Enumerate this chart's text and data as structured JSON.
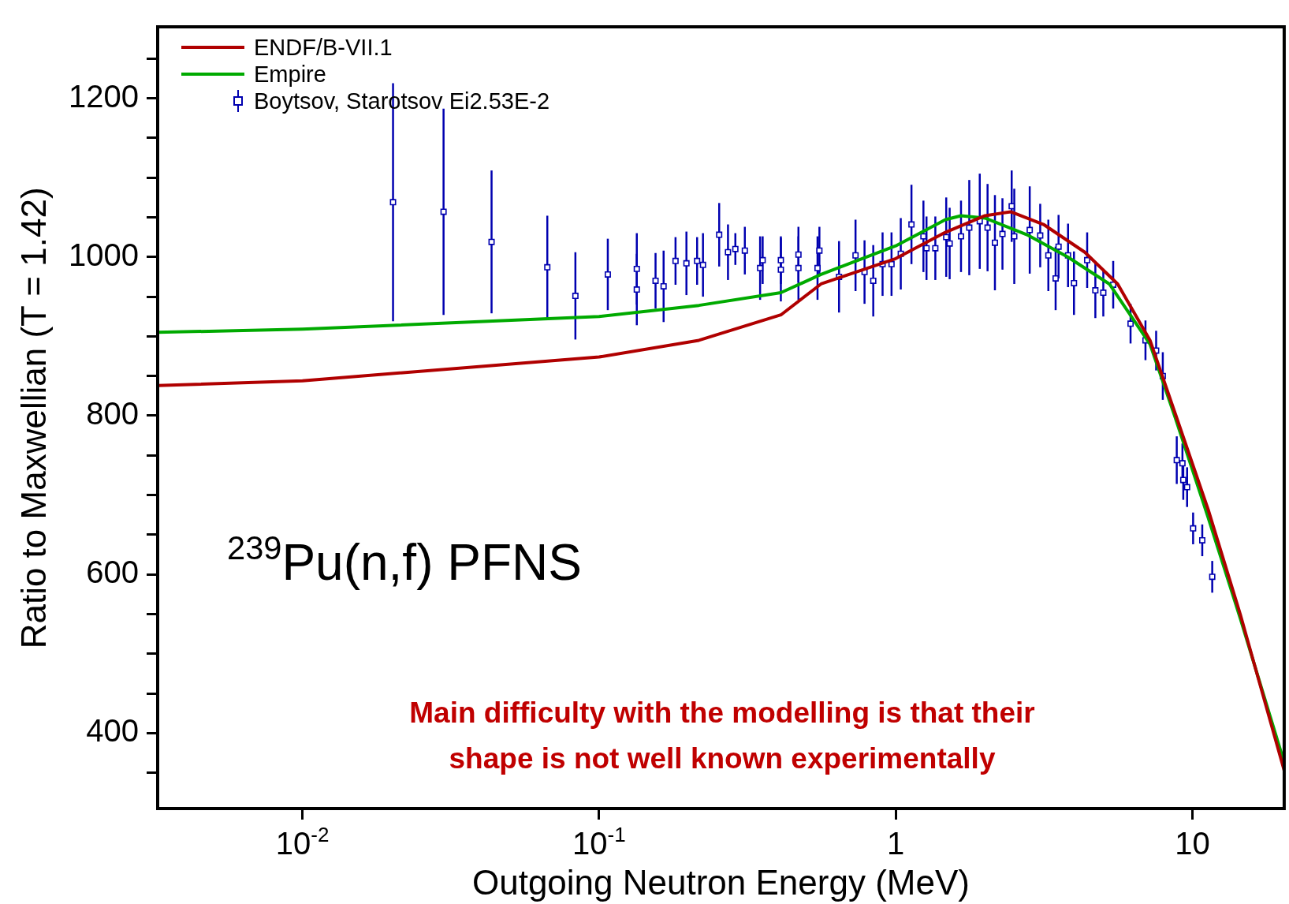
{
  "chart_data": {
    "type": "line",
    "xlabel": "Outgoing Neutron Energy (MeV)",
    "ylabel": "Ratio to Maxwellian (T = 1.42)",
    "log": "x",
    "grid": false,
    "legend": "top left",
    "xlim": [
      0.00325,
      20.4
    ],
    "xticks": [
      {
        "value": 0.01,
        "label": "10$^{-2}$"
      },
      {
        "value": 0.1,
        "label": "10$^{-1}$"
      },
      1,
      10
    ],
    "ylim": [
      305,
      1290
    ],
    "yticks": [
      {
        "value": 350,
        "label": null
      },
      400,
      {
        "value": 450,
        "label": null
      },
      {
        "value": 500,
        "label": null
      },
      {
        "value": 550,
        "label": null
      },
      600,
      {
        "value": 650,
        "label": null
      },
      {
        "value": 700,
        "label": null
      },
      {
        "value": 750,
        "label": null
      },
      800,
      {
        "value": 850,
        "label": null
      },
      {
        "value": 900,
        "label": null
      },
      {
        "value": 950,
        "label": null
      },
      1000,
      {
        "value": 1050,
        "label": null
      },
      {
        "value": 1100,
        "label": null
      },
      {
        "value": 1150,
        "label": null
      },
      1200,
      {
        "value": 1250,
        "label": null
      }
    ],
    "annotations": [
      "$^{239}$Pu(n,f) PFNS",
      "Main difficulty with the modelling is that their shape is not well known experimentally"
    ],
    "series": [
      {
        "name": "ENDF/B-VII.1",
        "color": "#b00000",
        "marker": "none",
        "line_style": "solid",
        "x": [
          0.00325,
          0.01,
          0.1,
          0.217,
          0.41,
          0.56,
          1,
          1.47,
          2.0,
          2.44,
          3.15,
          4.34,
          5.6,
          7.2,
          8.75,
          11.3,
          14.5,
          20.4
        ],
        "values": [
          838,
          844,
          874,
          895,
          927,
          966,
          998,
          1031,
          1052,
          1057,
          1041,
          1006,
          966,
          895,
          803,
          682,
          550,
          353
        ]
      },
      {
        "name": "Empire",
        "color": "#00aa00",
        "marker": "none",
        "line_style": "solid",
        "x": [
          0.00325,
          0.01,
          0.1,
          0.217,
          0.41,
          0.56,
          1,
          1.47,
          1.66,
          2.0,
          2.77,
          3.8,
          5.25,
          7.2,
          8.75,
          11.3,
          14.5,
          20.4
        ],
        "values": [
          905,
          909,
          925,
          939,
          955,
          978,
          1014,
          1047,
          1052,
          1049,
          1028,
          1000,
          966,
          890,
          798,
          672,
          545,
          363
        ]
      },
      {
        "name": "Boytsov, Starotsov Ei2.53E-2",
        "type": "scatter",
        "color": "#0000b0",
        "marker": "square",
        "x": [
          0.0202,
          0.0299,
          0.0434,
          0.0669,
          0.0832,
          0.107,
          0.134,
          0.134,
          0.155,
          0.165,
          0.181,
          0.197,
          0.214,
          0.224,
          0.254,
          0.272,
          0.288,
          0.31,
          0.349,
          0.356,
          0.41,
          0.41,
          0.47,
          0.47,
          0.545,
          0.553,
          0.644,
          0.732,
          0.785,
          0.84,
          0.903,
          0.968,
          1.04,
          1.13,
          1.24,
          1.27,
          1.36,
          1.48,
          1.52,
          1.66,
          1.77,
          1.92,
          2.04,
          2.16,
          2.29,
          2.46,
          2.51,
          2.83,
          3.07,
          3.27,
          3.46,
          3.54,
          3.81,
          3.99,
          4.42,
          4.71,
          5.01,
          5.41,
          6.19,
          6.95,
          7.55,
          7.95,
          8.86,
          9.26,
          9.32,
          9.6,
          10.06,
          10.8,
          11.67
        ],
        "values": [
          1069,
          1057,
          1019,
          987,
          951,
          978,
          959,
          985,
          970,
          963,
          995,
          992,
          995,
          990,
          1028,
          1006,
          1010,
          1008,
          986,
          996,
          984,
          996,
          986,
          1003,
          986,
          1008,
          975,
          1002,
          981,
          970,
          991,
          991,
          1004,
          1041,
          1026,
          1011,
          1011,
          1025,
          1017,
          1026,
          1037,
          1045,
          1037,
          1018,
          1029,
          1064,
          1026,
          1034,
          1027,
          1002,
          973,
          1013,
          1002,
          967,
          996,
          958,
          955,
          965,
          916,
          895,
          882,
          850,
          744,
          740,
          719,
          710,
          658,
          643,
          597
        ],
        "errors": [
          150,
          130,
          90,
          65,
          55,
          45,
          45,
          45,
          35,
          45,
          30,
          40,
          30,
          40,
          40,
          35,
          20,
          30,
          40,
          30,
          40,
          30,
          40,
          35,
          40,
          30,
          45,
          45,
          40,
          45,
          40,
          40,
          45,
          50,
          45,
          40,
          40,
          50,
          45,
          45,
          60,
          60,
          55,
          60,
          45,
          45,
          60,
          55,
          40,
          45,
          40,
          40,
          40,
          40,
          35,
          35,
          30,
          30,
          25,
          25,
          25,
          30,
          30,
          25,
          25,
          25,
          20,
          20,
          20
        ]
      }
    ]
  }
}
